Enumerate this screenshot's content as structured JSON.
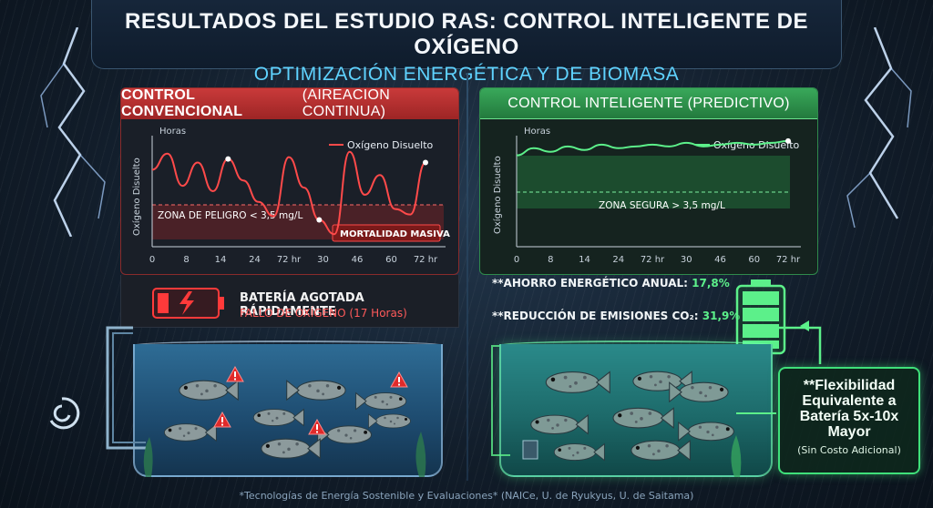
{
  "header": {
    "title": "RESULTADOS DEL ESTUDIO RAS: CONTROL INTELIGENTE DE OXÍGENO",
    "subtitle": "OPTIMIZACIÓN ENERGÉTICA Y DE BIOMASA"
  },
  "left_panel": {
    "title_bold": "CONTROL CONVENCIONAL",
    "title_rest": "(AIREACIÓN CONTINUA)",
    "y_axis_label": "Oxígeno Disuelto",
    "x_axis_title": "Horas",
    "legend": "Oxígeno Disuelto",
    "zone_label": "ZONA DE PELIGRO < 3,5 mg/L",
    "mortality_label": "MORTALIDAD MASIVA",
    "battery_title": "BATERÍA AGOTADA RÁPIDAMENTE",
    "battery_sub": "FALLO DE OXÍGENO (17 Horas)",
    "colors": {
      "accent": "#e03a3a",
      "line": "#ff4a4a"
    }
  },
  "right_panel": {
    "title": "CONTROL INTELIGENTE (PREDICTIVO)",
    "y_axis_label": "Oxígeno Disuelto",
    "x_axis_title": "Horas",
    "legend": "Oxígeno Disuelto",
    "zone_label": "ZONA SEGURA > 3,5 mg/L",
    "metric_energy_label": "**AHORRO ENERGÉTICO ANUAL:",
    "metric_energy_value": "17,8%",
    "metric_co2_label": "**REDUCCIÓN DE EMISIONES CO₂:",
    "metric_co2_value": "31,9%",
    "colors": {
      "accent": "#3fe07a",
      "line": "#5cf08a"
    }
  },
  "flex_box": {
    "main": "**Flexibilidad Equivalente a Batería 5x-10x Mayor",
    "sub": "(Sin Costo Adicional)"
  },
  "footer": "*Tecnologías de Energía Sostenible y Evaluaciones* (NAICe, U. de Ryukyus, U. de Saitama)",
  "chart_data": [
    {
      "type": "line",
      "title": "CONTROL CONVENCIONAL (AIREACIÓN CONTINUA)",
      "xlabel": "Horas",
      "ylabel": "Oxígeno Disuelto",
      "x_ticks": [
        "0",
        "8",
        "14",
        "24",
        "72 hr",
        "30",
        "46",
        "60",
        "72 hr"
      ],
      "series": [
        {
          "name": "Oxígeno Disuelto",
          "values": [
            5.2,
            6.1,
            4.3,
            5.6,
            4.0,
            5.8,
            4.6,
            3.4,
            2.6,
            5.9,
            4.2,
            2.4,
            1.6,
            6.2,
            3.8,
            4.9,
            3.0,
            2.7,
            5.6
          ]
        }
      ],
      "threshold": 3.5,
      "legend_position": "top-right"
    },
    {
      "type": "line",
      "title": "CONTROL INTELIGENTE (PREDICTIVO)",
      "xlabel": "Horas",
      "ylabel": "Oxígeno Disuelto",
      "x_ticks": [
        "0",
        "8",
        "14",
        "24",
        "72 hr",
        "30",
        "46",
        "60",
        "72 hr"
      ],
      "series": [
        {
          "name": "Oxígeno Disuelto",
          "values": [
            6.0,
            6.4,
            6.2,
            6.5,
            6.3,
            6.6,
            6.4,
            6.5,
            6.6,
            6.5,
            6.7,
            6.5,
            6.6,
            6.7,
            6.6,
            6.7,
            6.8
          ]
        }
      ],
      "threshold": 3.5,
      "legend_position": "top-right"
    }
  ]
}
